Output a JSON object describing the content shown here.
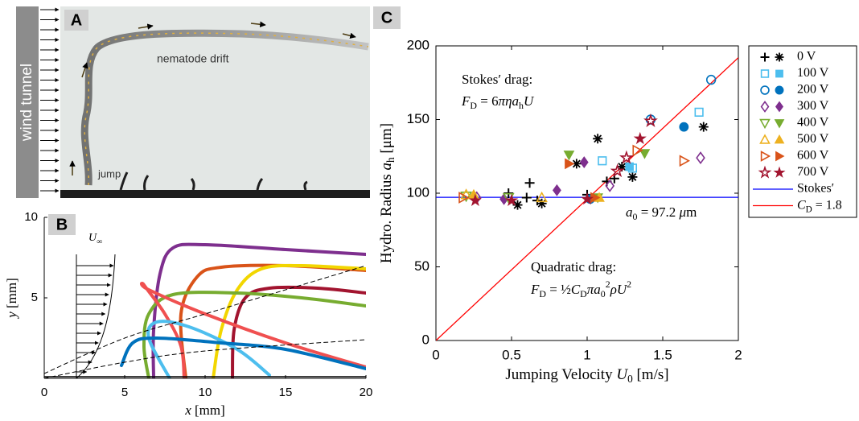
{
  "figure": {
    "panel_labels": [
      "A",
      "B",
      "C"
    ]
  },
  "photo": {
    "wind_label": "wind tunnel",
    "drift_label": "nematode drift",
    "jump_label": "jump"
  },
  "chart_data": [
    {
      "type": "line",
      "xlabel": [
        {
          "i": "x"
        },
        " [mm]"
      ],
      "ylabel": [
        {
          "i": "y"
        },
        " [mm]"
      ],
      "profile_label": [
        {
          "i": "U"
        },
        {
          "sub": "∞"
        }
      ],
      "xlim": [
        0,
        20
      ],
      "ylim": [
        0,
        10
      ],
      "xticks": [
        0,
        5,
        10,
        15,
        20
      ],
      "yticks": [
        5,
        10
      ],
      "series": [
        {
          "color": "#7e2f8e",
          "x": [
            6.8,
            6.8,
            7.2,
            8,
            10,
            15,
            20
          ],
          "values": [
            0,
            3,
            6.5,
            8.1,
            8.3,
            8.0,
            7.7
          ]
        },
        {
          "color": "#d95319",
          "x": [
            8.8,
            8.5,
            9.5,
            11,
            15,
            20
          ],
          "values": [
            0,
            4,
            6.3,
            6.9,
            7.0,
            6.7
          ]
        },
        {
          "color": "#f2d600",
          "x": [
            10.5,
            11,
            12,
            13.5,
            16,
            20
          ],
          "values": [
            0,
            3,
            5.5,
            6.8,
            7.0,
            6.8
          ]
        },
        {
          "color": "#a2142f",
          "x": [
            11.7,
            11.8,
            12.5,
            14,
            17,
            20
          ],
          "values": [
            0,
            3,
            5,
            5.6,
            5.6,
            5.3
          ]
        },
        {
          "color": "#77ac30",
          "x": [
            6.5,
            6.2,
            6.5,
            8,
            12,
            16,
            20
          ],
          "values": [
            0,
            2,
            4,
            5.2,
            5.3,
            5.0,
            4.5
          ]
        },
        {
          "color": "#f05050",
          "x": [
            8.7,
            8.5,
            7.5,
            6.2,
            6.5,
            10,
            15,
            20
          ],
          "values": [
            0,
            2,
            4,
            5.8,
            5.5,
            4,
            2.2,
            0.7
          ]
        },
        {
          "color": "#4dbeee",
          "x": [
            7.8,
            6.5,
            7,
            9,
            12,
            14
          ],
          "values": [
            0,
            2.5,
            3.5,
            3.2,
            1.8,
            0.2
          ]
        },
        {
          "color": "#0072bd",
          "x": [
            4.8,
            5.5,
            7,
            11,
            15,
            20
          ],
          "values": [
            0.8,
            2.2,
            2.5,
            2.2,
            1.8,
            0.6
          ]
        },
        {
          "color": "#000000",
          "dash": true,
          "x": [
            0,
            5,
            10,
            15,
            20
          ],
          "values": [
            0.3,
            2.5,
            4,
            5.5,
            7
          ]
        },
        {
          "color": "#000000",
          "dash": true,
          "x": [
            0,
            5,
            10,
            20
          ],
          "values": [
            0,
            1,
            1.7,
            2.4
          ]
        }
      ]
    },
    {
      "type": "scatter",
      "xlabel": [
        "Jumping Velocity ",
        {
          "i": "U"
        },
        {
          "sub": "0"
        },
        " [m/s]"
      ],
      "ylabel": [
        "Hydro. Radius ",
        {
          "i": "a"
        },
        {
          "sub": "h"
        },
        " [μm]"
      ],
      "xlim": [
        0,
        2
      ],
      "ylim": [
        0,
        200
      ],
      "xticks": [
        0,
        0.5,
        1,
        1.5,
        2
      ],
      "yticks": [
        0,
        50,
        100,
        150,
        200
      ],
      "legend": "outside right",
      "series": [
        {
          "name": "0 V",
          "color": "#000000",
          "markers": [
            "plus",
            "asterisk"
          ],
          "x": [
            0.48,
            0.6,
            0.62,
            0.67,
            1.0,
            1.13,
            1.18,
            0.54,
            0.7,
            0.93,
            1.07,
            1.23,
            1.3,
            1.77
          ],
          "values": [
            100,
            97,
            107,
            95,
            99,
            108,
            110,
            92,
            93,
            120,
            137,
            118,
            111,
            145
          ],
          "filled": [
            false,
            false,
            false,
            false,
            false,
            false,
            false,
            true,
            true,
            true,
            true,
            true,
            true,
            true
          ]
        },
        {
          "name": "100 V",
          "color": "#4dbeee",
          "markers": [
            "square",
            "square"
          ],
          "x": [
            1.1,
            1.74,
            1.3,
            1.28
          ],
          "values": [
            122,
            155,
            117,
            118
          ],
          "filled": [
            false,
            false,
            false,
            true
          ]
        },
        {
          "name": "200 V",
          "color": "#0072bd",
          "markers": [
            "circle",
            "circle"
          ],
          "x": [
            1.42,
            1.82,
            1.64,
            1.02
          ],
          "values": [
            150,
            177,
            145,
            96
          ],
          "filled": [
            false,
            false,
            true,
            true
          ]
        },
        {
          "name": "300 V",
          "color": "#7e2f8e",
          "markers": [
            "diamond",
            "diamond"
          ],
          "x": [
            1.15,
            1.75,
            0.27,
            0.8,
            0.98,
            0.45
          ],
          "values": [
            105,
            124,
            97,
            102,
            121,
            96
          ],
          "filled": [
            false,
            false,
            false,
            true,
            true,
            true
          ]
        },
        {
          "name": "400 V",
          "color": "#77ac30",
          "markers": [
            "tridown",
            "tridown"
          ],
          "x": [
            0.48,
            0.2,
            0.88,
            1.38,
            1.07
          ],
          "values": [
            97,
            98,
            126,
            127,
            97
          ],
          "filled": [
            false,
            false,
            true,
            true,
            true
          ]
        },
        {
          "name": "500 V",
          "color": "#edb120",
          "markers": [
            "triup",
            "triup"
          ],
          "x": [
            0.2,
            0.7,
            1.08,
            0.25
          ],
          "values": [
            99,
            97,
            97,
            99
          ],
          "filled": [
            false,
            false,
            true,
            true
          ]
        },
        {
          "name": "600 V",
          "color": "#d95319",
          "markers": [
            "tright",
            "tright"
          ],
          "x": [
            1.33,
            1.64,
            0.18,
            0.88,
            1.05
          ],
          "values": [
            129,
            122,
            97,
            120,
            97
          ],
          "filled": [
            false,
            false,
            false,
            true,
            true
          ]
        },
        {
          "name": "700 V",
          "color": "#a2142f",
          "markers": [
            "star",
            "star"
          ],
          "x": [
            1.42,
            1.2,
            1.26,
            1.35,
            1.0,
            0.26,
            0.5
          ],
          "values": [
            149,
            115,
            124,
            137,
            96,
            95,
            95
          ],
          "filled": [
            false,
            false,
            false,
            true,
            true,
            true,
            true
          ]
        }
      ],
      "lines": [
        {
          "name": "Stokes′",
          "color": "#0000ff",
          "x": [
            0,
            2
          ],
          "values": [
            97.2,
            97.2
          ]
        },
        {
          "name": [
            {
              "i": "C"
            },
            {
              "sub": "D"
            },
            " = 1.8"
          ],
          "color": "#ff0000",
          "x": [
            0,
            2
          ],
          "values": [
            0,
            192
          ]
        }
      ],
      "annotations": [
        "Stokes′ drag:",
        [
          {
            "i": "F"
          },
          {
            "sub": "D"
          },
          " = 6",
          {
            "i": "πηa"
          },
          {
            "sub": "h"
          },
          {
            "i": "U"
          }
        ],
        [
          {
            "i": "a"
          },
          {
            "sub": "0"
          },
          " = 97.2 ",
          {
            "i": "μ"
          },
          "m"
        ],
        "Quadratic drag:",
        [
          {
            "i": "F"
          },
          {
            "sub": "D"
          },
          " = ½",
          {
            "i": "C"
          },
          {
            "sub": "D"
          },
          {
            "i": "πa"
          },
          {
            "sub": "0"
          },
          {
            "sup": "2"
          },
          {
            "i": "ρU"
          },
          {
            "sup": "2"
          }
        ]
      ]
    }
  ]
}
